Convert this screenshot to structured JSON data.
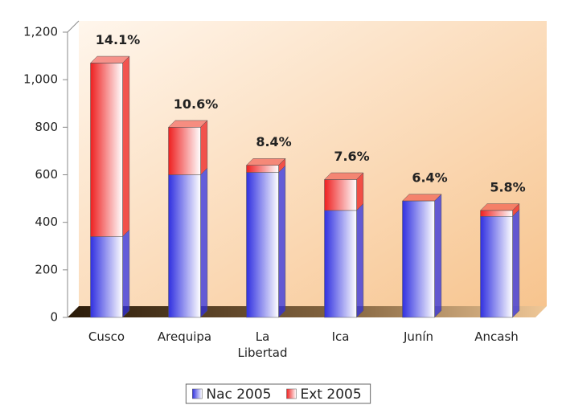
{
  "chart_data": {
    "type": "bar",
    "stacked": true,
    "categories": [
      "Cusco",
      "Arequipa",
      "La Libertad",
      "Ica",
      "Junín",
      "Ancash"
    ],
    "series": [
      {
        "name": "Nac 2005",
        "color": "#3030e0",
        "values": [
          340,
          600,
          610,
          450,
          490,
          425
        ]
      },
      {
        "name": "Ext 2005",
        "color": "#ee2020",
        "values": [
          730,
          200,
          30,
          130,
          0,
          25
        ]
      }
    ],
    "annotations": [
      "14.1%",
      "10.6%",
      "8.4%",
      "7.6%",
      "6.4%",
      "5.8%"
    ],
    "ylim": [
      0,
      1200
    ],
    "yticks": [
      0,
      200,
      400,
      600,
      800,
      {
        "value": 1000,
        "label": "1,000"
      },
      {
        "value": 1200,
        "label": "1,200"
      }
    ],
    "legend": "bottom"
  }
}
